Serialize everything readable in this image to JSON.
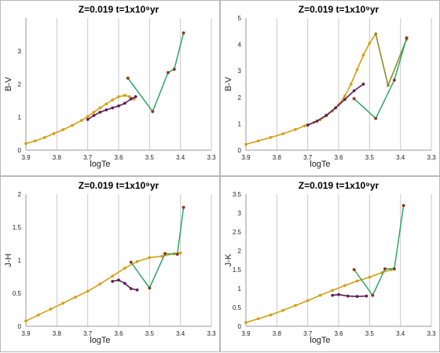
{
  "colors": {
    "model_a": "#D4A017",
    "model_b": "#5C1F57",
    "observed": "#1FA35A",
    "observed_points": "#8B3A1F",
    "model_a_alt": "#8A8F2A"
  },
  "chart_data": [
    {
      "type": "line",
      "title": "Z=0.019  t=1x10⁹yr",
      "xlabel": "logTe",
      "ylabel": "B-V",
      "xlim": [
        3.9,
        3.3
      ],
      "ylim": [
        0,
        4
      ],
      "xticks": [
        "3.9",
        "3.8",
        "3.7",
        "3.6",
        "3.5",
        "3.4",
        "3.3"
      ],
      "yticks": [
        "0",
        "1",
        "2",
        "3"
      ],
      "grid": true,
      "series": [
        {
          "role": "model_a",
          "x": [
            3.9,
            3.87,
            3.84,
            3.81,
            3.78,
            3.75,
            3.72,
            3.7,
            3.68,
            3.66,
            3.64,
            3.62,
            3.6,
            3.58,
            3.565,
            3.55
          ],
          "y": [
            0.2,
            0.28,
            0.38,
            0.5,
            0.62,
            0.75,
            0.9,
            1.02,
            1.15,
            1.28,
            1.4,
            1.52,
            1.62,
            1.66,
            1.62,
            1.55
          ]
        },
        {
          "role": "model_b",
          "x": [
            3.7,
            3.68,
            3.66,
            3.64,
            3.62,
            3.6,
            3.58,
            3.56,
            3.545
          ],
          "y": [
            0.93,
            1.05,
            1.15,
            1.22,
            1.28,
            1.34,
            1.42,
            1.55,
            1.62
          ]
        },
        {
          "role": "observed",
          "x": [
            3.57,
            3.49,
            3.44,
            3.42,
            3.39
          ],
          "y": [
            2.18,
            1.17,
            2.35,
            2.45,
            3.55
          ]
        }
      ]
    },
    {
      "type": "line",
      "title": "Z=0.019  t=1x10⁹yr",
      "xlabel": "logTe",
      "ylabel": "B-V",
      "xlim": [
        3.9,
        3.3
      ],
      "ylim": [
        0,
        5
      ],
      "xticks": [
        "3.9",
        "3.8",
        "3.7",
        "3.6",
        "3.5",
        "3.4",
        "3.3"
      ],
      "yticks": [
        "0",
        "1",
        "2",
        "3",
        "4",
        "5"
      ],
      "grid": true,
      "series": [
        {
          "role": "model_a",
          "x": [
            3.9,
            3.86,
            3.82,
            3.78,
            3.74,
            3.71,
            3.68,
            3.66,
            3.64,
            3.62,
            3.6,
            3.58,
            3.56,
            3.54,
            3.52,
            3.5,
            3.48
          ],
          "y": [
            0.22,
            0.35,
            0.48,
            0.62,
            0.78,
            0.92,
            1.05,
            1.15,
            1.3,
            1.48,
            1.72,
            2.05,
            2.5,
            3.05,
            3.6,
            4.05,
            4.4
          ]
        },
        {
          "role": "model_b",
          "x": [
            3.7,
            3.67,
            3.64,
            3.61,
            3.58,
            3.55,
            3.52
          ],
          "y": [
            0.95,
            1.1,
            1.32,
            1.6,
            1.92,
            2.25,
            2.5
          ]
        },
        {
          "role": "model_a_alt",
          "x": [
            3.48,
            3.44,
            3.38
          ],
          "y": [
            4.4,
            2.45,
            4.2
          ]
        },
        {
          "role": "observed",
          "x": [
            3.55,
            3.48,
            3.42,
            3.38
          ],
          "y": [
            1.95,
            1.2,
            2.65,
            4.25
          ]
        }
      ]
    },
    {
      "type": "line",
      "title": "Z=0.019  t=1x10⁹yr",
      "xlabel": "logTe",
      "ylabel": "J-H",
      "xlim": [
        3.9,
        3.3
      ],
      "ylim": [
        0,
        2
      ],
      "xticks": [
        "3.9",
        "3.8",
        "3.7",
        "3.6",
        "3.5",
        "3.4",
        "3.3"
      ],
      "yticks": [
        "0",
        "0.5",
        "1",
        "1.5",
        "2"
      ],
      "grid": true,
      "series": [
        {
          "role": "model_a",
          "x": [
            3.9,
            3.86,
            3.82,
            3.78,
            3.74,
            3.7,
            3.66,
            3.62,
            3.58,
            3.54,
            3.5,
            3.46,
            3.42,
            3.4
          ],
          "y": [
            0.08,
            0.17,
            0.26,
            0.35,
            0.44,
            0.53,
            0.64,
            0.76,
            0.88,
            0.98,
            1.04,
            1.06,
            1.1,
            1.11
          ]
        },
        {
          "role": "model_b",
          "x": [
            3.62,
            3.6,
            3.58,
            3.56,
            3.54
          ],
          "y": [
            0.68,
            0.7,
            0.65,
            0.57,
            0.55
          ]
        },
        {
          "role": "observed",
          "x": [
            3.56,
            3.5,
            3.45,
            3.41,
            3.39
          ],
          "y": [
            0.97,
            0.58,
            1.1,
            1.09,
            1.8
          ]
        }
      ]
    },
    {
      "type": "line",
      "title": "Z=0.019  t=1x10⁹yr",
      "xlabel": "logTe",
      "ylabel": "J-K",
      "xlim": [
        3.9,
        3.3
      ],
      "ylim": [
        0,
        3.5
      ],
      "xticks": [
        "3.9",
        "3.8",
        "3.7",
        "3.6",
        "3.5",
        "3.4",
        "3.3"
      ],
      "yticks": [
        "0",
        "0.5",
        "1",
        "1.5",
        "2",
        "2.5",
        "3",
        "3.5"
      ],
      "grid": true,
      "series": [
        {
          "role": "model_a",
          "x": [
            3.9,
            3.86,
            3.82,
            3.78,
            3.74,
            3.7,
            3.66,
            3.62,
            3.58,
            3.54,
            3.5,
            3.46,
            3.43,
            3.42
          ],
          "y": [
            0.1,
            0.2,
            0.3,
            0.42,
            0.55,
            0.68,
            0.82,
            0.95,
            1.08,
            1.2,
            1.3,
            1.42,
            1.5,
            1.52
          ]
        },
        {
          "role": "model_b",
          "x": [
            3.62,
            3.6,
            3.57,
            3.54,
            3.51
          ],
          "y": [
            0.82,
            0.84,
            0.8,
            0.79,
            0.8
          ]
        },
        {
          "role": "observed",
          "x": [
            3.55,
            3.49,
            3.45,
            3.42,
            3.39
          ],
          "y": [
            1.5,
            0.82,
            1.52,
            1.52,
            3.2
          ]
        }
      ]
    }
  ]
}
